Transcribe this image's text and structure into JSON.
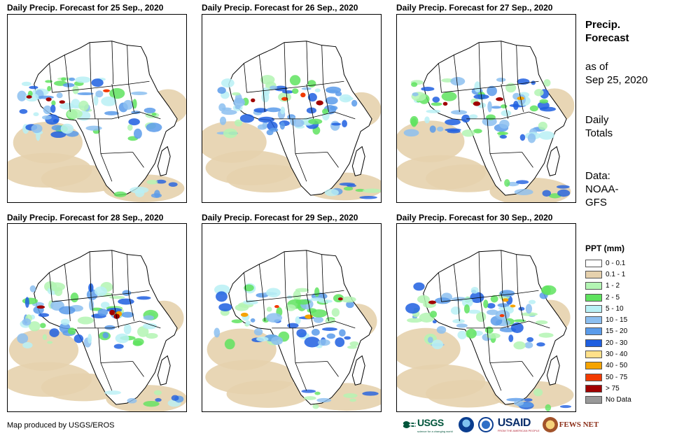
{
  "panels": [
    {
      "title": "Daily Precip. Forecast for 25 Sep., 2020"
    },
    {
      "title": "Daily Precip. Forecast for 26 Sep., 2020"
    },
    {
      "title": "Daily Precip. Forecast for 27 Sep., 2020"
    },
    {
      "title": "Daily Precip. Forecast for 28 Sep., 2020"
    },
    {
      "title": "Daily Precip. Forecast for 29 Sep., 2020"
    },
    {
      "title": "Daily Precip. Forecast for 30 Sep., 2020"
    }
  ],
  "side": {
    "title_line1": "Precip.",
    "title_line2": "Forecast",
    "asof_line1": "as of",
    "asof_line2": "Sep 25, 2020",
    "daily_line1": "Daily",
    "daily_line2": "Totals",
    "data_line1": "Data:",
    "data_line2": "NOAA-",
    "data_line3": "GFS"
  },
  "legend": {
    "title": "PPT (mm)",
    "items": [
      {
        "label": "0 - 0.1",
        "color": "#ffffff"
      },
      {
        "label": "0.1 - 1",
        "color": "#e6d1ad"
      },
      {
        "label": "1 - 2",
        "color": "#b3f5b3"
      },
      {
        "label": "2 - 5",
        "color": "#5fe35f"
      },
      {
        "label": "5 - 10",
        "color": "#b9f0f5"
      },
      {
        "label": "10 - 15",
        "color": "#8cbff0"
      },
      {
        "label": "15 - 20",
        "color": "#5a9bea"
      },
      {
        "label": "20 - 30",
        "color": "#1f5fe0"
      },
      {
        "label": "30 - 40",
        "color": "#ffe08a"
      },
      {
        "label": "40 - 50",
        "color": "#f5a300"
      },
      {
        "label": "50 - 75",
        "color": "#f23a00"
      },
      {
        "label": "> 75",
        "color": "#a00000"
      },
      {
        "label": "No Data",
        "color": "#999999"
      }
    ]
  },
  "credit": "Map produced by USGS/EROS",
  "logos": {
    "usgs": "USGS",
    "usgs_tagline": "science for a changing world",
    "usaid": "USAID",
    "usaid_tagline": "FROM THE AMERICAN PEOPLE",
    "fews": "FEWS NET"
  }
}
